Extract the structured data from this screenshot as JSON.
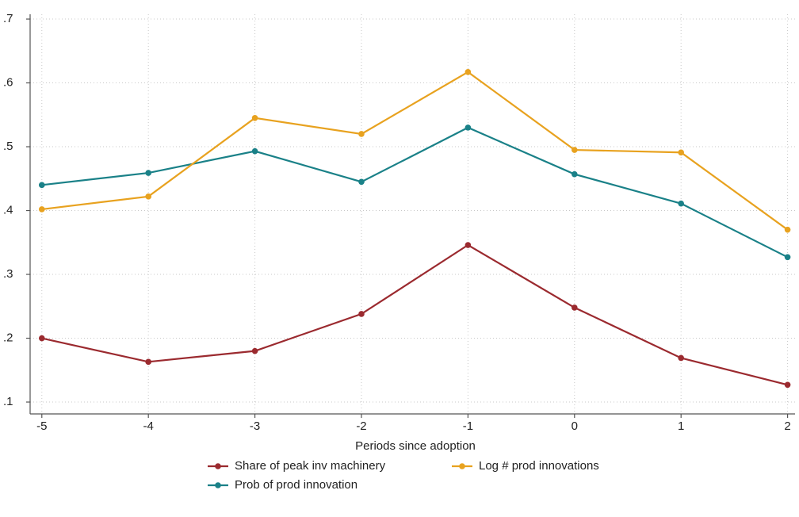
{
  "chart_data": {
    "type": "line",
    "x_label": "Periods since adoption",
    "x": [
      -5,
      -4,
      -3,
      -2,
      -1,
      0,
      1,
      2
    ],
    "series": [
      {
        "name": "Share of peak inv machinery",
        "color": "#9b2a2f",
        "values": [
          0.2,
          0.163,
          0.18,
          0.238,
          0.346,
          0.248,
          0.169,
          0.127
        ]
      },
      {
        "name": "Prob of prod innovation",
        "color": "#1a8188",
        "values": [
          0.44,
          0.459,
          0.493,
          0.445,
          0.53,
          0.457,
          0.411,
          0.327
        ]
      },
      {
        "name": "Log # prod innovations",
        "color": "#e8a21f",
        "values": [
          0.402,
          0.422,
          0.545,
          0.52,
          0.617,
          0.495,
          0.491,
          0.37
        ]
      }
    ],
    "xlim": [
      -5.11,
      2.07
    ],
    "xticks": [
      -5,
      -4,
      -3,
      -2,
      -1,
      0,
      1,
      2
    ],
    "ylim": [
      0.0814,
      0.7075
    ],
    "yticks": [
      {
        "value": 0.1,
        "label": ".1"
      },
      {
        "value": 0.2,
        "label": ".2"
      },
      {
        "value": 0.3,
        "label": ".3"
      },
      {
        "value": 0.4,
        "label": ".4"
      },
      {
        "value": 0.5,
        "label": ".5"
      },
      {
        "value": 0.6,
        "label": ".6"
      },
      {
        "value": 0.7,
        "label": ".7"
      }
    ],
    "grid": true
  }
}
